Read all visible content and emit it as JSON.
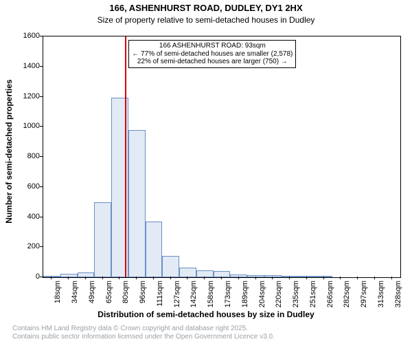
{
  "title_line1": "166, ASHENHURST ROAD, DUDLEY, DY1 2HX",
  "title_line2": "Size of property relative to semi-detached houses in Dudley",
  "title_fontsize": 13,
  "subtitle_fontsize": 12,
  "axes": {
    "xlabel": "Distribution of semi-detached houses by size in Dudley",
    "ylabel": "Number of semi-detached properties",
    "label_fontsize": 12,
    "tick_fontsize": 11,
    "y": {
      "min": 0,
      "max": 1600,
      "step": 200
    },
    "x": {
      "min": 0,
      "max": 21
    }
  },
  "histogram": {
    "type": "histogram",
    "bar_fill": "#e2eaf6",
    "bar_border": "#6b8fc2",
    "background_color": "#ffffff",
    "categories": [
      "18sqm",
      "34sqm",
      "49sqm",
      "65sqm",
      "80sqm",
      "96sqm",
      "111sqm",
      "127sqm",
      "142sqm",
      "158sqm",
      "173sqm",
      "189sqm",
      "204sqm",
      "220sqm",
      "235sqm",
      "251sqm",
      "266sqm",
      "282sqm",
      "297sqm",
      "313sqm",
      "328sqm"
    ],
    "values": [
      5,
      25,
      30,
      500,
      1195,
      980,
      370,
      140,
      65,
      45,
      40,
      20,
      15,
      15,
      8,
      5,
      3,
      0,
      2,
      2,
      2
    ]
  },
  "marker": {
    "color": "#d60000",
    "annotation_line1": "166 ASHENHURST ROAD: 93sqm",
    "annotation_line2": "← 77% of semi-detached houses are smaller (2,578)",
    "annotation_line3": "22% of semi-detached houses are larger (750) →",
    "bin_index_after": 5
  },
  "credits": {
    "color": "#9aa0a6",
    "fontsize": 10,
    "line1": "Contains HM Land Registry data © Crown copyright and database right 2025.",
    "line2": "Contains public sector information licensed under the Open Government Licence v3.0."
  }
}
